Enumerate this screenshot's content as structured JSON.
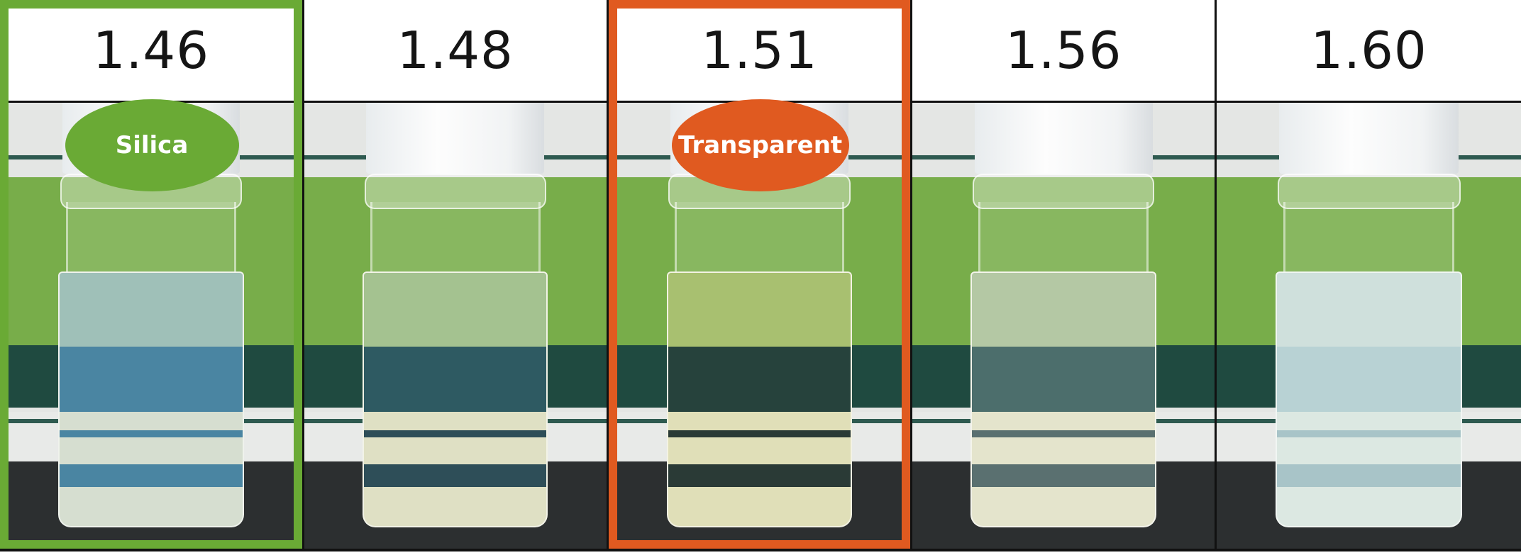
{
  "samples": [
    {
      "value": "1.46",
      "label": "Silica",
      "highlight": "#6aaa35",
      "liquid": {
        "top": "#9fc0b8",
        "mid": "#4a85a2",
        "stripe": "#4a85a2",
        "light": "#d6ded0"
      }
    },
    {
      "value": "1.48",
      "label": "",
      "highlight": "",
      "liquid": {
        "top": "#a4c290",
        "mid": "#2e5a62",
        "stripe": "#2e4e58",
        "light": "#dfe0c4"
      }
    },
    {
      "value": "1.51",
      "label": "Transparent",
      "highlight": "#e05a20",
      "liquid": {
        "top": "#a8c070",
        "mid": "#26423c",
        "stripe": "#2a3a36",
        "light": "#e0dfb8"
      }
    },
    {
      "value": "1.56",
      "label": "",
      "highlight": "",
      "liquid": {
        "top": "#b4c8a4",
        "mid": "#4c6e6c",
        "stripe": "#5a7070",
        "light": "#e4e4cc"
      }
    },
    {
      "value": "1.60",
      "label": "",
      "highlight": "",
      "liquid": {
        "top": "#cfe0dc",
        "mid": "#b8d2d4",
        "stripe": "#a8c4c8",
        "light": "#dce8e2"
      }
    }
  ],
  "colors": {
    "silica": "#6aaa35",
    "transparent": "#e05a20",
    "backdrop_green": "#78ad4a",
    "backdrop_dark": "#1f4a40",
    "floor": "#2c2f30"
  }
}
